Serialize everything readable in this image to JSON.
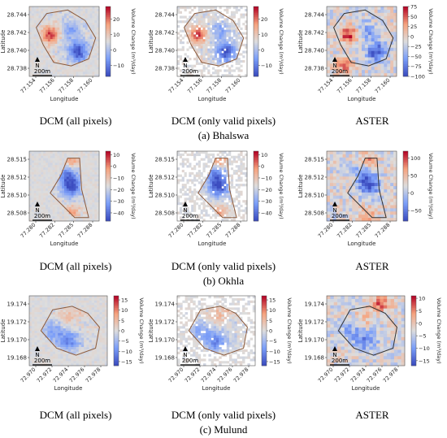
{
  "rows": [
    {
      "label": "(a) Bhalswa",
      "letter": "(a)",
      "site": "Bhalswa",
      "ylabel": "Latitude",
      "xlabel": "Longitude",
      "panels": [
        {
          "caption": "DCM (all pixels)",
          "xticks": [
            "77.154",
            "77.156",
            "77.158",
            "77.160"
          ],
          "yticks": [
            "28.744",
            "28.742",
            "28.740",
            "28.738"
          ],
          "cbar_ticks": [
            "20",
            "10",
            "0",
            "−10"
          ],
          "vmin": -17,
          "vmax": 28,
          "cbar_label": "Volume Change (m³/day)",
          "north": "N",
          "scale": "200m",
          "sparse": false
        },
        {
          "caption": "DCM (only valid pixels)",
          "xticks": [
            "77.154",
            "77.156",
            "77.158",
            "77.160"
          ],
          "yticks": [
            "28.744",
            "28.742",
            "28.740",
            "28.738"
          ],
          "cbar_ticks": [
            "20",
            "10",
            "0",
            "−10"
          ],
          "vmin": -17,
          "vmax": 28,
          "cbar_label": "Volume Change (m³/day)",
          "north": "N",
          "scale": "200m",
          "sparse": true
        },
        {
          "caption": "ASTER",
          "xticks": [
            "77.154",
            "77.156",
            "77.158",
            "77.160"
          ],
          "yticks": [
            "28.744",
            "28.742",
            "28.740",
            "28.738"
          ],
          "cbar_ticks": [
            "75",
            "50",
            "25",
            "0",
            "−25",
            "−50",
            "−75",
            "−100"
          ],
          "vmin": -100,
          "vmax": 75,
          "cbar_label": "Volume Change (m³/day)",
          "north": "N",
          "scale": "200m",
          "sparse": false
        }
      ]
    },
    {
      "label": "(b) Okhla",
      "letter": "(b)",
      "site": "Okhla",
      "ylabel": "Latitude",
      "xlabel": "Longitude",
      "panels": [
        {
          "caption": "DCM (all pixels)",
          "xticks": [
            "77.280",
            "77.282",
            "77.285",
            "77.288"
          ],
          "yticks": [
            "28.515",
            "28.512",
            "28.510",
            "28.508"
          ],
          "cbar_ticks": [
            "10",
            "0",
            "−10",
            "−20",
            "−30",
            "−40"
          ],
          "vmin": -47,
          "vmax": 13,
          "cbar_label": "Volume Change (m³/day)",
          "north": "N",
          "scale": "200m",
          "sparse": false
        },
        {
          "caption": "DCM (only valid pixels)",
          "xticks": [
            "77.280",
            "77.282",
            "77.285",
            "77.288"
          ],
          "yticks": [
            "28.515",
            "28.512",
            "28.510",
            "28.508"
          ],
          "cbar_ticks": [
            "10",
            "0",
            "−10",
            "−20",
            "−30",
            "−40"
          ],
          "vmin": -47,
          "vmax": 13,
          "cbar_label": "Volume Change (m³/day)",
          "north": "N",
          "scale": "200m",
          "sparse": true
        },
        {
          "caption": "ASTER",
          "xticks": [
            "77.280",
            "77.282",
            "77.285",
            "77.288"
          ],
          "yticks": [
            "28.515",
            "28.512",
            "28.510",
            "28.508"
          ],
          "cbar_ticks": [
            "100",
            "50",
            "0",
            "−50"
          ],
          "vmin": -80,
          "vmax": 120,
          "cbar_label": "Volume Change (m³/day)",
          "north": "N",
          "scale": "200m",
          "sparse": false
        }
      ]
    },
    {
      "label": "(c) Mulund",
      "letter": "(c)",
      "site": "Mulund",
      "ylabel": "Latitude",
      "xlabel": "Longitude",
      "panels": [
        {
          "caption": "DCM (all pixels)",
          "xticks": [
            "72.970",
            "72.972",
            "72.974",
            "72.976",
            "72.978"
          ],
          "yticks": [
            "19.174",
            "19.172",
            "19.170",
            "19.168"
          ],
          "cbar_ticks": [
            "15",
            "10",
            "5",
            "0",
            "−5",
            "−10",
            "−15"
          ],
          "vmin": -17,
          "vmax": 17,
          "cbar_label": "Volume Change (m³/day)",
          "north": "N",
          "scale": "200m",
          "sparse": false
        },
        {
          "caption": "DCM (only valid pixels)",
          "xticks": [
            "72.970",
            "72.972",
            "72.974",
            "72.976",
            "72.978"
          ],
          "yticks": [
            "19.174",
            "19.172",
            "19.170",
            "19.168"
          ],
          "cbar_ticks": [
            "15",
            "10",
            "5",
            "0",
            "−5",
            "−10",
            "−15"
          ],
          "vmin": -17,
          "vmax": 17,
          "cbar_label": "Volume Change (m³/day)",
          "north": "N",
          "scale": "200m",
          "sparse": true
        },
        {
          "caption": "ASTER",
          "xticks": [
            "72.970",
            "72.972",
            "72.974",
            "72.976",
            "72.978"
          ],
          "yticks": [
            "19.174",
            "19.172",
            "19.170",
            "19.168"
          ],
          "cbar_ticks": [
            "10",
            "5",
            "0",
            "−5",
            "−10",
            "−15"
          ],
          "vmin": -17,
          "vmax": 11,
          "cbar_label": "Volume Change (m³/day)",
          "north": "N",
          "scale": "200m",
          "sparse": false
        }
      ]
    }
  ],
  "chart_data": [
    {
      "type": "heatmap",
      "title": "(a) Bhalswa",
      "subplots": [
        "DCM (all pixels)",
        "DCM (only valid pixels)",
        "ASTER"
      ],
      "xlabel": "Longitude",
      "ylabel": "Latitude",
      "xlim": [
        77.153,
        77.161
      ],
      "ylim": [
        28.737,
        28.745
      ],
      "colorbar_label": "Volume Change (m³/day)",
      "colorbar_ranges": [
        [
          -17,
          28
        ],
        [
          -17,
          28
        ],
        [
          -100,
          75
        ]
      ],
      "colormap": "coolwarm (blue = negative, red = positive)",
      "annotations": [
        "N",
        "200m"
      ]
    },
    {
      "type": "heatmap",
      "title": "(b) Okhla",
      "subplots": [
        "DCM (all pixels)",
        "DCM (only valid pixels)",
        "ASTER"
      ],
      "xlabel": "Longitude",
      "ylabel": "Latitude",
      "xlim": [
        77.279,
        77.289
      ],
      "ylim": [
        28.507,
        28.516
      ],
      "colorbar_label": "Volume Change (m³/day)",
      "colorbar_ranges": [
        [
          -47,
          13
        ],
        [
          -47,
          13
        ],
        [
          -80,
          120
        ]
      ],
      "colormap": "coolwarm (blue = negative, red = positive)",
      "annotations": [
        "N",
        "200m"
      ]
    },
    {
      "type": "heatmap",
      "title": "(c) Mulund",
      "subplots": [
        "DCM (all pixels)",
        "DCM (only valid pixels)",
        "ASTER"
      ],
      "xlabel": "Longitude",
      "ylabel": "Latitude",
      "xlim": [
        72.969,
        72.979
      ],
      "ylim": [
        19.167,
        19.175
      ],
      "colorbar_label": "Volume Change (m³/day)",
      "colorbar_ranges": [
        [
          -17,
          17
        ],
        [
          -17,
          17
        ],
        [
          -17,
          11
        ]
      ],
      "colormap": "coolwarm (blue = negative, red = positive)",
      "annotations": [
        "N",
        "200m"
      ]
    }
  ]
}
